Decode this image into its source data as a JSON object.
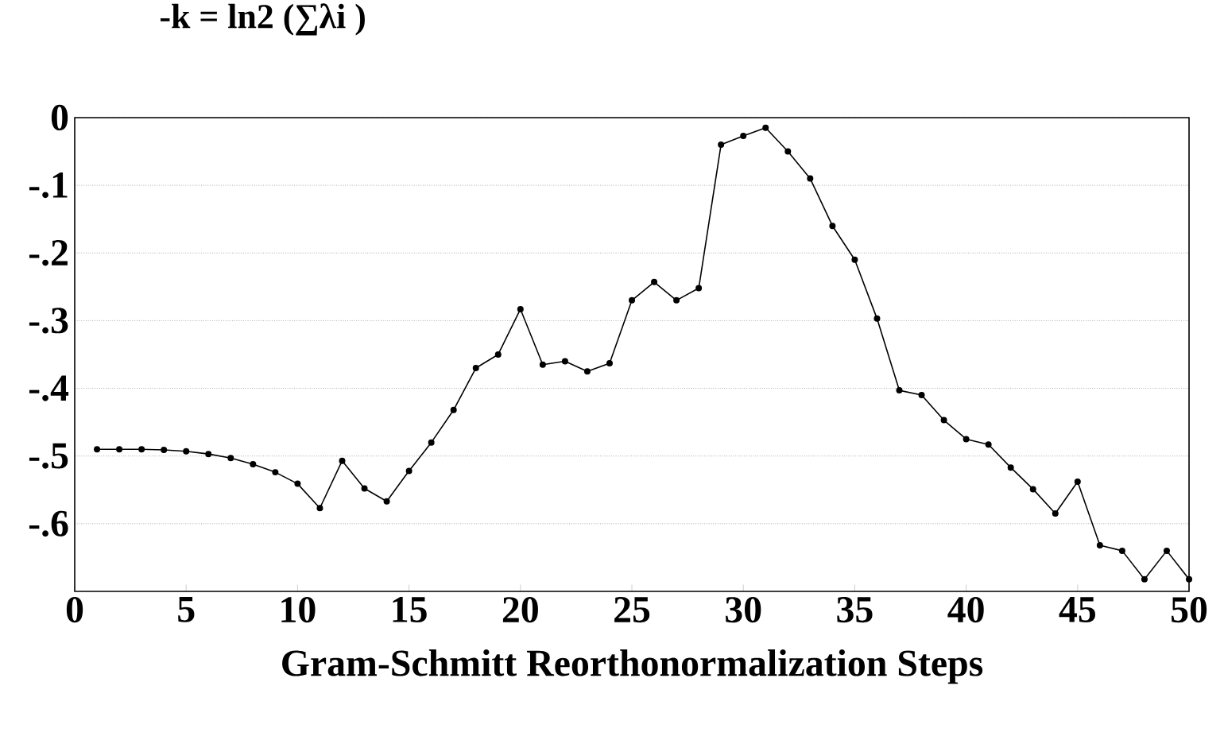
{
  "chart_data": {
    "type": "line",
    "title": "-k = ln2 (∑λi )",
    "xlabel": "Gram-Schmitt Reorthonormalization Steps",
    "x": [
      1,
      2,
      3,
      4,
      5,
      6,
      7,
      8,
      9,
      10,
      11,
      12,
      13,
      14,
      15,
      16,
      17,
      18,
      19,
      20,
      21,
      22,
      23,
      24,
      25,
      26,
      27,
      28,
      29,
      30,
      31,
      32,
      33,
      34,
      35,
      36,
      37,
      38,
      39,
      40,
      41,
      42,
      43,
      44,
      45,
      46,
      47,
      48,
      49,
      50
    ],
    "values": [
      -0.49,
      -0.49,
      -0.49,
      -0.491,
      -0.493,
      -0.497,
      -0.503,
      -0.512,
      -0.524,
      -0.541,
      -0.577,
      -0.507,
      -0.548,
      -0.567,
      -0.522,
      -0.48,
      -0.432,
      -0.37,
      -0.35,
      -0.283,
      -0.365,
      -0.36,
      -0.375,
      -0.363,
      -0.27,
      -0.243,
      -0.27,
      -0.252,
      -0.04,
      -0.027,
      -0.015,
      -0.05,
      -0.09,
      -0.16,
      -0.21,
      -0.297,
      -0.403,
      -0.41,
      -0.447,
      -0.475,
      -0.483,
      -0.517,
      -0.549,
      -0.585,
      -0.538,
      -0.632,
      -0.64,
      -0.682,
      -0.64,
      -0.682
    ],
    "color": "#000000",
    "xlim": [
      0,
      50
    ],
    "ylim": [
      -0.7,
      0
    ],
    "xticks": [
      0,
      5,
      10,
      15,
      20,
      25,
      30,
      35,
      40,
      45,
      50
    ],
    "yticks": [
      {
        "value": 0,
        "label": "0"
      },
      {
        "value": -0.1,
        "label": "-.1"
      },
      {
        "value": -0.2,
        "label": "-.2"
      },
      {
        "value": -0.3,
        "label": "-.3"
      },
      {
        "value": -0.4,
        "label": "-.4"
      },
      {
        "value": -0.5,
        "label": "-.5"
      },
      {
        "value": -0.6,
        "label": "-.6"
      }
    ],
    "grid": "y",
    "marker": "circle",
    "line_style": "solid"
  }
}
